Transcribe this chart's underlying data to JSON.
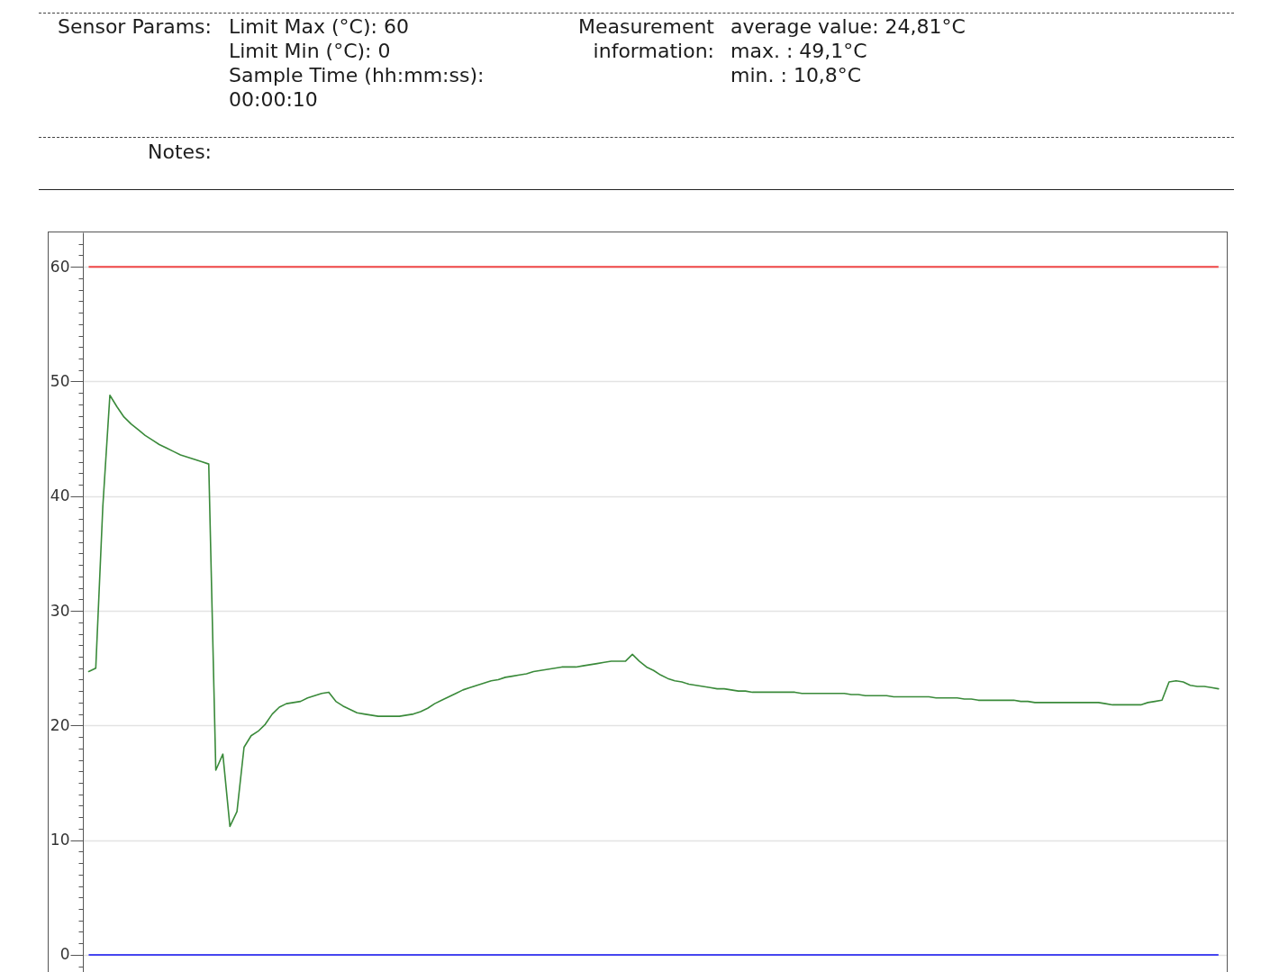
{
  "chart_data": {
    "type": "line",
    "annotations": [
      "Sensor Params:",
      "Limit Max (°C): 60",
      "Limit Min (°C): 0",
      "Sample Time (hh:mm:ss): 00:00:10",
      "Measurement information:",
      "average value: 24,81°C",
      "max. : 49,1°C",
      "min. : 10,8°C",
      "Notes:"
    ],
    "categories": [
      null,
      null,
      null,
      null,
      null,
      null,
      null,
      null,
      null,
      null,
      null,
      null,
      null,
      null,
      null,
      null,
      null,
      null,
      null,
      null,
      null,
      null,
      null,
      null,
      null,
      null,
      null,
      null,
      null,
      null,
      null,
      null,
      null,
      null,
      null,
      null,
      null,
      null,
      null,
      null,
      null,
      null,
      null,
      null,
      null,
      null,
      null,
      null,
      null,
      null,
      null,
      null,
      null,
      null,
      null,
      null,
      null,
      null,
      null,
      null,
      null,
      null,
      null,
      null,
      null,
      null,
      null,
      null,
      null,
      null,
      null,
      null,
      null,
      null,
      null,
      null,
      null,
      null,
      null,
      null,
      null,
      null,
      null,
      null,
      null,
      null,
      null,
      null,
      null,
      null,
      null,
      null,
      null,
      null,
      null,
      null,
      null,
      null,
      null,
      null,
      null,
      null,
      null,
      null,
      null,
      null,
      null,
      null,
      null,
      null,
      null,
      null,
      null,
      null,
      null,
      null,
      null,
      null,
      null,
      null,
      null,
      null,
      null,
      null,
      null,
      null,
      null,
      null,
      null,
      null,
      null,
      null,
      null,
      null,
      null,
      null,
      null,
      null,
      null,
      null,
      null,
      null,
      null,
      null,
      null,
      null,
      null,
      null,
      null,
      null,
      null,
      null,
      null,
      null,
      null,
      null,
      null,
      null,
      null,
      null,
      null
    ],
    "series": [
      {
        "color": "#3a8a3a",
        "values": [
          24.7,
          25.0,
          39.1,
          48.8,
          47.8,
          46.9,
          46.3,
          45.8,
          45.3,
          44.9,
          44.5,
          44.2,
          43.9,
          43.6,
          43.4,
          43.2,
          43.0,
          42.8,
          16.1,
          17.5,
          11.2,
          12.5,
          18.1,
          19.1,
          19.5,
          20.1,
          21.0,
          21.6,
          21.9,
          22.0,
          22.1,
          22.4,
          22.6,
          22.8,
          22.9,
          22.1,
          21.7,
          21.4,
          21.1,
          21.0,
          20.9,
          20.8,
          20.8,
          20.8,
          20.8,
          20.9,
          21.0,
          21.2,
          21.5,
          21.9,
          22.2,
          22.5,
          22.8,
          23.1,
          23.3,
          23.5,
          23.7,
          23.9,
          24.0,
          24.2,
          24.3,
          24.4,
          24.5,
          24.7,
          24.8,
          24.9,
          25.0,
          25.1,
          25.1,
          25.1,
          25.2,
          25.3,
          25.4,
          25.5,
          25.6,
          25.6,
          25.6,
          26.2,
          25.6,
          25.1,
          24.8,
          24.4,
          24.1,
          23.9,
          23.8,
          23.6,
          23.5,
          23.4,
          23.3,
          23.2,
          23.2,
          23.1,
          23.0,
          23.0,
          22.9,
          22.9,
          22.9,
          22.9,
          22.9,
          22.9,
          22.9,
          22.8,
          22.8,
          22.8,
          22.8,
          22.8,
          22.8,
          22.8,
          22.7,
          22.7,
          22.6,
          22.6,
          22.6,
          22.6,
          22.5,
          22.5,
          22.5,
          22.5,
          22.5,
          22.5,
          22.4,
          22.4,
          22.4,
          22.4,
          22.3,
          22.3,
          22.2,
          22.2,
          22.2,
          22.2,
          22.2,
          22.2,
          22.1,
          22.1,
          22.0,
          22.0,
          22.0,
          22.0,
          22.0,
          22.0,
          22.0,
          22.0,
          22.0,
          22.0,
          21.9,
          21.8,
          21.8,
          21.8,
          21.8,
          21.8,
          22.0,
          22.1,
          22.2,
          23.8,
          23.9,
          23.8,
          23.5,
          23.4,
          23.4,
          23.3,
          23.2
        ]
      }
    ],
    "ylim": [
      -1.5,
      63
    ],
    "yticks": [
      {
        "value": -1,
        "label": null
      },
      0,
      {
        "value": 1,
        "label": null
      },
      {
        "value": 2,
        "label": null
      },
      {
        "value": 3,
        "label": null
      },
      {
        "value": 4,
        "label": null
      },
      {
        "value": 5,
        "label": null
      },
      {
        "value": 6,
        "label": null
      },
      {
        "value": 7,
        "label": null
      },
      {
        "value": 8,
        "label": null
      },
      {
        "value": 9,
        "label": null
      },
      10,
      {
        "value": 11,
        "label": null
      },
      {
        "value": 12,
        "label": null
      },
      {
        "value": 13,
        "label": null
      },
      {
        "value": 14,
        "label": null
      },
      {
        "value": 15,
        "label": null
      },
      {
        "value": 16,
        "label": null
      },
      {
        "value": 17,
        "label": null
      },
      {
        "value": 18,
        "label": null
      },
      {
        "value": 19,
        "label": null
      },
      20,
      {
        "value": 21,
        "label": null
      },
      {
        "value": 22,
        "label": null
      },
      {
        "value": 23,
        "label": null
      },
      {
        "value": 24,
        "label": null
      },
      {
        "value": 25,
        "label": null
      },
      {
        "value": 26,
        "label": null
      },
      {
        "value": 27,
        "label": null
      },
      {
        "value": 28,
        "label": null
      },
      {
        "value": 29,
        "label": null
      },
      30,
      {
        "value": 31,
        "label": null
      },
      {
        "value": 32,
        "label": null
      },
      {
        "value": 33,
        "label": null
      },
      {
        "value": 34,
        "label": null
      },
      {
        "value": 35,
        "label": null
      },
      {
        "value": 36,
        "label": null
      },
      {
        "value": 37,
        "label": null
      },
      {
        "value": 38,
        "label": null
      },
      {
        "value": 39,
        "label": null
      },
      40,
      {
        "value": 41,
        "label": null
      },
      {
        "value": 42,
        "label": null
      },
      {
        "value": 43,
        "label": null
      },
      {
        "value": 44,
        "label": null
      },
      {
        "value": 45,
        "label": null
      },
      {
        "value": 46,
        "label": null
      },
      {
        "value": 47,
        "label": null
      },
      {
        "value": 48,
        "label": null
      },
      {
        "value": 49,
        "label": null
      },
      50,
      {
        "value": 51,
        "label": null
      },
      {
        "value": 52,
        "label": null
      },
      {
        "value": 53,
        "label": null
      },
      {
        "value": 54,
        "label": null
      },
      {
        "value": 55,
        "label": null
      },
      {
        "value": 56,
        "label": null
      },
      {
        "value": 57,
        "label": null
      },
      {
        "value": 58,
        "label": null
      },
      {
        "value": 59,
        "label": null
      },
      60,
      {
        "value": 61,
        "label": null
      },
      {
        "value": 62,
        "label": null
      }
    ],
    "grid": "y",
    "tick_labels": "y",
    "ref_lines": [
      {
        "axis": "y",
        "value": 60,
        "color": "#f04646"
      },
      {
        "axis": "y",
        "value": 0,
        "color": "#4646f0"
      }
    ]
  }
}
